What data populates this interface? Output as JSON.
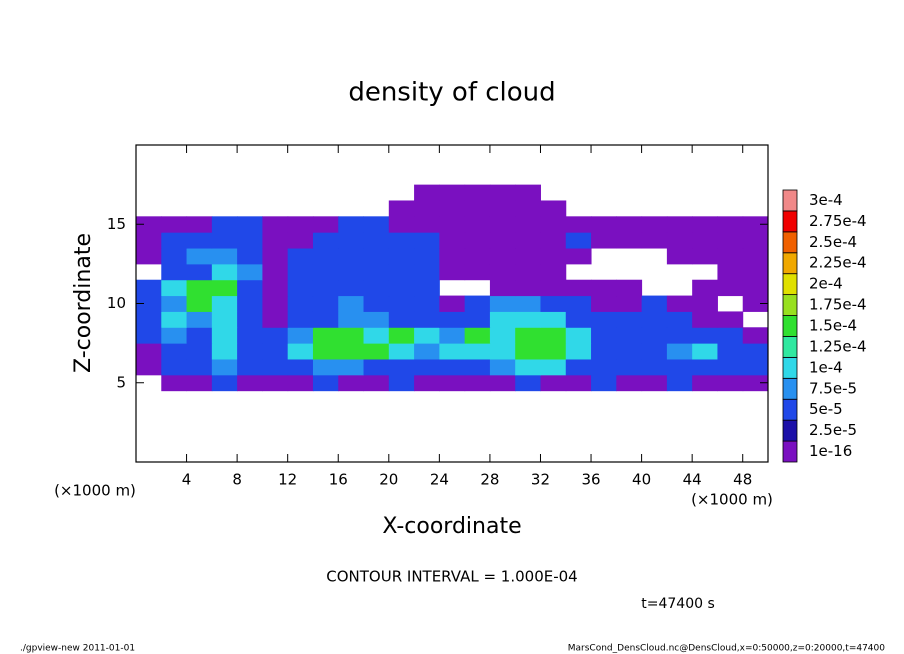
{
  "chart_data": {
    "type": "contour",
    "title": "density of cloud",
    "x_label": "X-coordinate",
    "y_label": "Z-coordinate",
    "x_unit_label": "(×1000 m)",
    "y_unit_label": "(×1000 m)",
    "xlim": [
      0,
      50
    ],
    "ylim": [
      0,
      20
    ],
    "xticks": [
      4,
      8,
      12,
      16,
      20,
      24,
      28,
      32,
      36,
      40,
      44,
      48
    ],
    "yticks": [
      5,
      10,
      15
    ],
    "x": [
      1,
      3,
      5,
      7,
      9,
      11,
      13,
      15,
      17,
      19,
      21,
      23,
      25,
      27,
      29,
      31,
      33,
      35,
      37,
      39,
      41,
      43,
      45,
      47,
      49
    ],
    "z": [
      5,
      6,
      7,
      8,
      9,
      10,
      11,
      12,
      13,
      14,
      15,
      16,
      17
    ],
    "values": [
      [
        null,
        1e-05,
        1e-05,
        6e-05,
        1e-05,
        1e-05,
        1e-05,
        6e-05,
        1e-05,
        1e-05,
        6e-05,
        1e-05,
        1e-05,
        1e-05,
        1e-05,
        6e-05,
        1e-05,
        1e-05,
        6e-05,
        1e-05,
        1e-05,
        6e-05,
        1e-05,
        1e-05,
        1e-05
      ],
      [
        1e-05,
        6e-05,
        6e-05,
        8e-05,
        6e-05,
        6e-05,
        6e-05,
        8e-05,
        8e-05,
        6e-05,
        6e-05,
        6e-05,
        6e-05,
        6e-05,
        8e-05,
        0.00011,
        0.00011,
        6e-05,
        6e-05,
        6e-05,
        6e-05,
        6e-05,
        6e-05,
        6e-05,
        6e-05
      ],
      [
        1e-05,
        6e-05,
        6e-05,
        0.00011,
        6e-05,
        6e-05,
        0.00011,
        0.00016,
        0.00016,
        0.00016,
        0.00011,
        8e-05,
        0.00011,
        0.00011,
        0.00011,
        0.00016,
        0.00016,
        0.00011,
        6e-05,
        6e-05,
        6e-05,
        8e-05,
        0.00011,
        6e-05,
        6e-05
      ],
      [
        6e-05,
        8e-05,
        6e-05,
        0.00011,
        6e-05,
        6e-05,
        8e-05,
        0.00016,
        0.00016,
        0.00011,
        0.00016,
        0.00011,
        8e-05,
        0.00016,
        0.00011,
        0.00016,
        0.00016,
        0.00011,
        6e-05,
        6e-05,
        6e-05,
        6e-05,
        6e-05,
        6e-05,
        1e-05
      ],
      [
        6e-05,
        0.00011,
        8e-05,
        0.00011,
        6e-05,
        1e-05,
        6e-05,
        6e-05,
        8e-05,
        8e-05,
        6e-05,
        6e-05,
        6e-05,
        6e-05,
        0.00011,
        0.00011,
        0.00011,
        6e-05,
        6e-05,
        6e-05,
        6e-05,
        6e-05,
        1e-05,
        1e-05,
        null
      ],
      [
        6e-05,
        8e-05,
        0.00016,
        0.00011,
        6e-05,
        1e-05,
        6e-05,
        6e-05,
        8e-05,
        6e-05,
        6e-05,
        6e-05,
        1e-05,
        6e-05,
        8e-05,
        8e-05,
        6e-05,
        6e-05,
        1e-05,
        1e-05,
        6e-05,
        1e-05,
        1e-05,
        null,
        1e-05
      ],
      [
        6e-05,
        0.00011,
        0.00016,
        0.00016,
        6e-05,
        1e-05,
        6e-05,
        6e-05,
        6e-05,
        6e-05,
        6e-05,
        6e-05,
        null,
        null,
        1e-05,
        1e-05,
        1e-05,
        1e-05,
        1e-05,
        1e-05,
        null,
        null,
        1e-05,
        1e-05,
        1e-05
      ],
      [
        null,
        6e-05,
        6e-05,
        0.00011,
        8e-05,
        1e-05,
        6e-05,
        6e-05,
        6e-05,
        6e-05,
        6e-05,
        6e-05,
        1e-05,
        1e-05,
        1e-05,
        1e-05,
        1e-05,
        null,
        null,
        null,
        null,
        null,
        null,
        1e-05,
        1e-05
      ],
      [
        1e-05,
        6e-05,
        8e-05,
        8e-05,
        6e-05,
        1e-05,
        6e-05,
        6e-05,
        6e-05,
        6e-05,
        6e-05,
        6e-05,
        1e-05,
        1e-05,
        1e-05,
        1e-05,
        1e-05,
        1e-05,
        null,
        null,
        null,
        1e-05,
        1e-05,
        1e-05,
        1e-05
      ],
      [
        1e-05,
        6e-05,
        6e-05,
        6e-05,
        6e-05,
        1e-05,
        1e-05,
        6e-05,
        6e-05,
        6e-05,
        6e-05,
        6e-05,
        1e-05,
        1e-05,
        1e-05,
        1e-05,
        1e-05,
        6e-05,
        1e-05,
        1e-05,
        1e-05,
        1e-05,
        1e-05,
        1e-05,
        1e-05
      ],
      [
        1e-05,
        1e-05,
        1e-05,
        6e-05,
        6e-05,
        1e-05,
        1e-05,
        1e-05,
        6e-05,
        6e-05,
        1e-05,
        1e-05,
        1e-05,
        1e-05,
        1e-05,
        1e-05,
        1e-05,
        1e-05,
        1e-05,
        1e-05,
        1e-05,
        1e-05,
        1e-05,
        1e-05,
        1e-05
      ],
      [
        null,
        null,
        null,
        null,
        null,
        null,
        null,
        null,
        null,
        null,
        1e-05,
        1e-05,
        1e-05,
        1e-05,
        1e-05,
        1e-05,
        1e-05,
        null,
        null,
        null,
        null,
        null,
        null,
        null,
        null
      ],
      [
        null,
        null,
        null,
        null,
        null,
        null,
        null,
        null,
        null,
        null,
        null,
        1e-05,
        1e-05,
        1e-05,
        1e-05,
        1e-05,
        null,
        null,
        null,
        null,
        null,
        null,
        null,
        null,
        null
      ]
    ],
    "colorbar": {
      "ticks": [
        {
          "value": 1e-16,
          "label": "1e-16"
        },
        {
          "value": 2.5e-05,
          "label": "2.5e-5"
        },
        {
          "value": 5e-05,
          "label": "5e-5"
        },
        {
          "value": 7.5e-05,
          "label": "7.5e-5"
        },
        {
          "value": 0.0001,
          "label": "1e-4"
        },
        {
          "value": 0.000125,
          "label": "1.25e-4"
        },
        {
          "value": 0.00015,
          "label": "1.5e-4"
        },
        {
          "value": 0.000175,
          "label": "1.75e-4"
        },
        {
          "value": 0.0002,
          "label": "2e-4"
        },
        {
          "value": 0.000225,
          "label": "2.25e-4"
        },
        {
          "value": 0.00025,
          "label": "2.5e-4"
        },
        {
          "value": 0.000275,
          "label": "2.75e-4"
        },
        {
          "value": 0.0003,
          "label": "3e-4"
        }
      ],
      "colors": [
        "#7a10c0",
        "#1c10a8",
        "#2048e8",
        "#2890f0",
        "#30d8e8",
        "#30e8a0",
        "#30e030",
        "#98e020",
        "#e0e000",
        "#f0a800",
        "#f06000",
        "#f00000",
        "#f08888"
      ]
    },
    "contour_note": "CONTOUR INTERVAL = 1.000E-04",
    "time_label": "t=47400 s",
    "footer_left": "./gpview-new  2011-01-01",
    "footer_right": "MarsCond_DensCloud.nc@DensCloud,x=0:50000,z=0:20000,t=47400"
  }
}
